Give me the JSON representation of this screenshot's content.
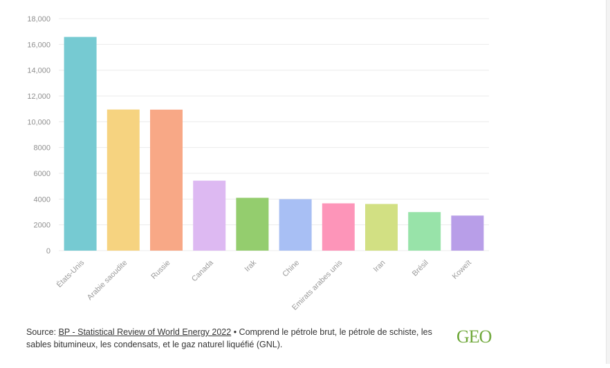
{
  "colors": {
    "background": "#ffffff",
    "grid": "#ebebeb",
    "tick_text": "#8f8f8f",
    "logo": "#6fa83a"
  },
  "footer": {
    "source_prefix": "Source: ",
    "source_link": "BP - Statistical Review of World Energy 2022",
    "note": " • Comprend le pétrole brut, le pétrole de schiste, les sables bitumineux, les condensats, et le gaz naturel liquéfié (GNL)."
  },
  "logo": {
    "text": "GEO"
  },
  "chart_data": {
    "type": "bar",
    "title": "",
    "xlabel": "",
    "ylabel": "",
    "ylim": [
      0,
      18000
    ],
    "yticks": [
      0,
      2000,
      4000,
      6000,
      8000,
      10000,
      12000,
      14000,
      16000,
      18000
    ],
    "ytick_labels": [
      "0",
      "2000",
      "4000",
      "6000",
      "8000",
      "10,000",
      "12,000",
      "14,000",
      "16,000",
      "18,000"
    ],
    "grid": true,
    "categories": [
      "États-Unis",
      "Arabie saoudite",
      "Russie",
      "Canada",
      "Irak",
      "Chine",
      "Emirats arabes unis",
      "Iran",
      "Brésil",
      "Koweït"
    ],
    "values": [
      16580,
      10950,
      10940,
      5430,
      4100,
      3990,
      3670,
      3620,
      2990,
      2720
    ],
    "bar_colors": [
      "#76cad2",
      "#f6d380",
      "#f8a886",
      "#ddb9f2",
      "#94cd6e",
      "#a8bff4",
      "#fd95b9",
      "#d2e083",
      "#98e3a9",
      "#b89ee8"
    ]
  }
}
